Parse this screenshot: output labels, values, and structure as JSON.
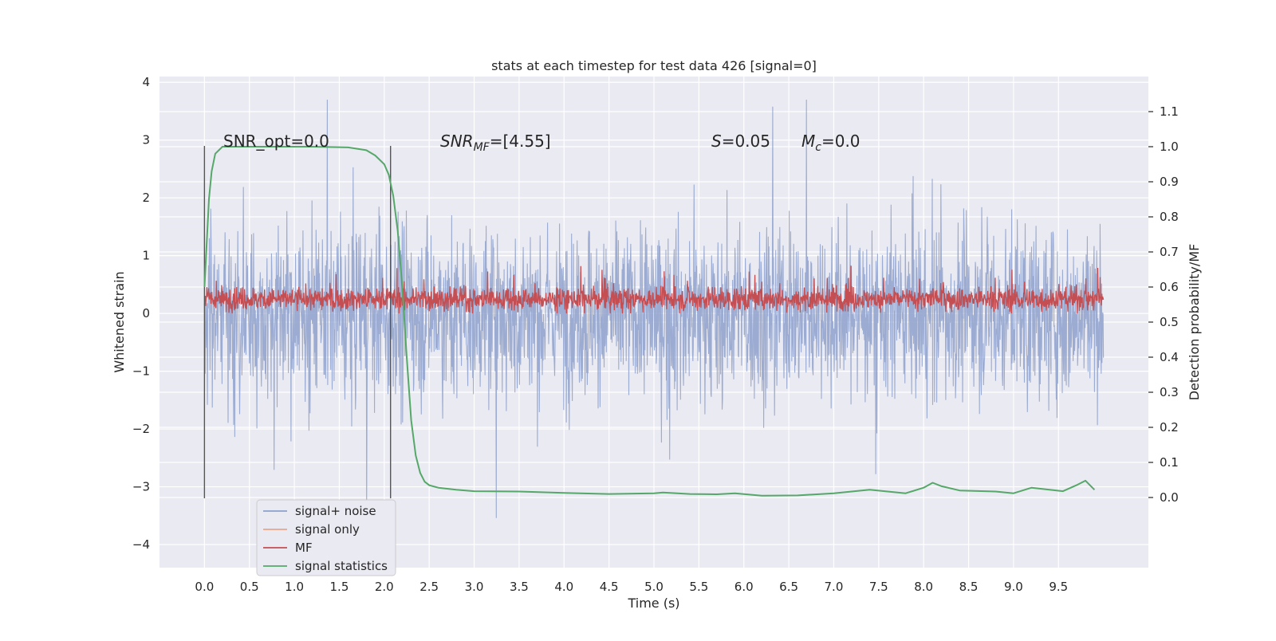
{
  "chart_data": {
    "type": "line",
    "title": "stats at each timestep for test data 426 [signal=0]",
    "xlabel": "Time (s)",
    "ylabel_left": "Whitened strain",
    "ylabel_right": "Detection probability/MF",
    "xlim": [
      -0.5,
      10.5
    ],
    "ylim_left": [
      -4.4,
      4.1
    ],
    "ylim_right": [
      -0.2,
      1.2
    ],
    "x_ticks": [
      "0.0",
      "0.5",
      "1.0",
      "1.5",
      "2.0",
      "2.5",
      "3.0",
      "3.5",
      "4.0",
      "4.5",
      "5.0",
      "5.5",
      "6.0",
      "6.5",
      "7.0",
      "7.5",
      "8.0",
      "8.5",
      "9.0",
      "9.5"
    ],
    "y_ticks_left": [
      "4",
      "3",
      "2",
      "1",
      "0",
      "−1",
      "−2",
      "−3",
      "−4"
    ],
    "y_ticks_right": [
      "1.1",
      "1.0",
      "0.9",
      "0.8",
      "0.7",
      "0.6",
      "0.5",
      "0.4",
      "0.3",
      "0.2",
      "0.1",
      "0.0"
    ],
    "grid": true,
    "legend_position": "lower-left",
    "annotations": {
      "snr_opt": "SNR_opt=0.0",
      "snr_mf_base": "SNR",
      "snr_mf_sub": "MF",
      "snr_mf_rest": "=[4.55]",
      "s_label": "S",
      "s_rest": "=0.05",
      "mc_base": "M",
      "mc_sub": "c",
      "mc_rest": "=0.0"
    },
    "window_markers_x": [
      0.0,
      2.07
    ],
    "window_marker_ylim": [
      -3.2,
      2.9
    ],
    "series": [
      {
        "name": "signal+ noise",
        "axis": "left",
        "color": "#8da0cb",
        "note_range": [
          -2.8,
          3.0
        ]
      },
      {
        "name": "signal only",
        "axis": "left",
        "color": "#e8a58a",
        "values": []
      },
      {
        "name": "MF",
        "axis": "left",
        "color": "#c44e52",
        "note_range": [
          0.0,
          0.9
        ]
      },
      {
        "name": "signal statistics",
        "axis": "right",
        "color": "#55a868",
        "x": [
          0.0,
          0.05,
          0.08,
          0.12,
          0.2,
          0.4,
          0.8,
          1.2,
          1.6,
          1.8,
          1.9,
          2.0,
          2.05,
          2.1,
          2.15,
          2.2,
          2.25,
          2.3,
          2.35,
          2.4,
          2.45,
          2.5,
          2.6,
          2.8,
          3.0,
          3.5,
          4.0,
          4.5,
          5.0,
          5.1,
          5.4,
          5.7,
          5.9,
          6.2,
          6.6,
          7.0,
          7.4,
          7.8,
          8.0,
          8.1,
          8.2,
          8.4,
          8.8,
          9.0,
          9.2,
          9.4,
          9.55,
          9.7,
          9.8,
          9.9
        ],
        "values": [
          0.6,
          0.85,
          0.93,
          0.98,
          1.0,
          1.0,
          1.0,
          1.0,
          0.998,
          0.99,
          0.975,
          0.95,
          0.92,
          0.86,
          0.76,
          0.6,
          0.4,
          0.22,
          0.12,
          0.07,
          0.045,
          0.035,
          0.028,
          0.022,
          0.018,
          0.017,
          0.013,
          0.01,
          0.012,
          0.014,
          0.01,
          0.009,
          0.012,
          0.005,
          0.006,
          0.012,
          0.022,
          0.012,
          0.028,
          0.042,
          0.032,
          0.02,
          0.017,
          0.012,
          0.028,
          0.022,
          0.018,
          0.035,
          0.048,
          0.022
        ]
      }
    ]
  }
}
